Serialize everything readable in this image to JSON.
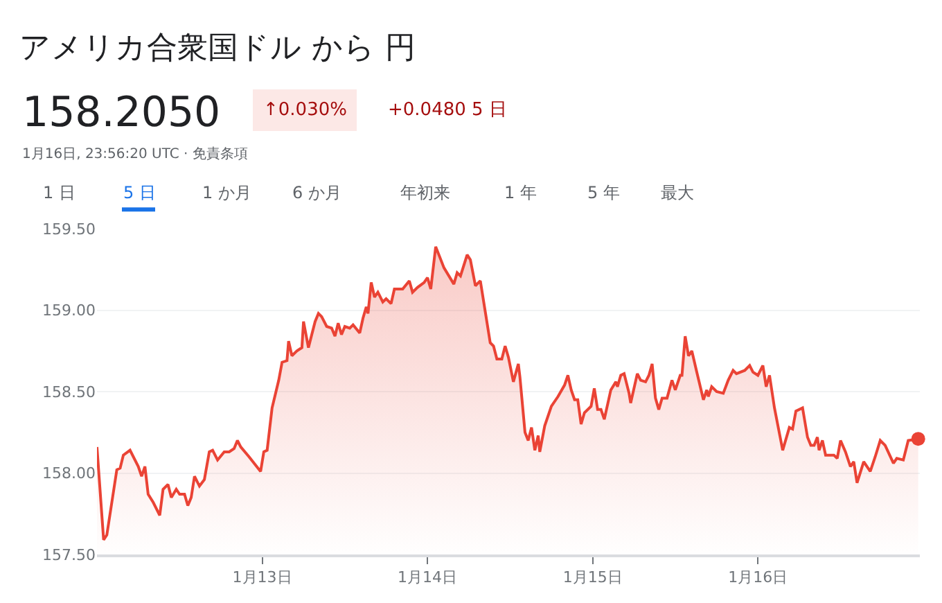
{
  "chart_data": {
    "type": "area",
    "title": "アメリカ合衆国ドル から 円",
    "annotations": [
      "158.2050",
      "↑0.030%",
      "+0.0480 5 日",
      "1月16日, 23:56:20 UTC · 免責条項",
      "1 日",
      "5 日",
      "1 か月",
      "6 か月",
      "年初来",
      "1 年",
      "5 年",
      "最大"
    ],
    "x": [
      "--01-12T00:00",
      "--01-12T00:58",
      "--01-12T01:26",
      "--01-12T02:53",
      "--01-12T03:22",
      "--01-12T03:50",
      "--01-12T04:48",
      "--01-12T06:00",
      "--01-12T06:29",
      "--01-12T06:58",
      "--01-12T07:26",
      "--01-12T08:10",
      "--01-12T09:07",
      "--01-12T09:36",
      "--01-12T10:19",
      "--01-12T10:48",
      "--01-12T11:31",
      "--01-12T12:00",
      "--01-12T12:43",
      "--01-12T13:12",
      "--01-12T13:41",
      "--01-12T14:10",
      "--01-12T14:53",
      "--01-12T15:36",
      "--01-12T16:19",
      "--01-12T16:48",
      "--01-12T17:31",
      "--01-12T18:29",
      "--01-12T19:12",
      "--01-12T19:55",
      "--01-12T20:24",
      "--01-12T20:53",
      "--01-12T22:05",
      "--01-12T23:46",
      "--01-13T00:14",
      "--01-13T00:43",
      "--01-13T01:26",
      "--01-13T02:24",
      "--01-13T02:53",
      "--01-13T03:36",
      "--01-13T03:50",
      "--01-13T04:19",
      "--01-13T05:02",
      "--01-13T05:46",
      "--01-13T06:00",
      "--01-13T06:43",
      "--01-13T07:41",
      "--01-13T08:10",
      "--01-13T08:38",
      "--01-13T09:22",
      "--01-13T10:05",
      "--01-13T10:34",
      "--01-13T11:02",
      "--01-13T11:31",
      "--01-13T12:00",
      "--01-13T12:43",
      "--01-13T13:12",
      "--01-13T14:10",
      "--01-13T14:38",
      "--01-13T15:07",
      "--01-13T15:22",
      "--01-13T15:50",
      "--01-13T16:19",
      "--01-13T16:48",
      "--01-13T17:31",
      "--01-13T18:00",
      "--01-13T18:43",
      "--01-13T19:12",
      "--01-13T20:24",
      "--01-13T21:22",
      "--01-13T21:50",
      "--01-13T22:34",
      "--01-13T23:31",
      "--01-14T00:00",
      "--01-14T00:29",
      "--01-14T01:12",
      "--01-14T02:24",
      "--01-14T03:50",
      "--01-14T04:19",
      "--01-14T04:48",
      "--01-14T05:46",
      "--01-14T06:14",
      "--01-14T06:58",
      "--01-14T07:41",
      "--01-14T08:24",
      "--01-14T09:07",
      "--01-14T09:36",
      "--01-14T10:05",
      "--01-14T10:48",
      "--01-14T11:17",
      "--01-14T11:46",
      "--01-14T12:29",
      "--01-14T13:12",
      "--01-14T13:26",
      "--01-14T14:10",
      "--01-14T14:38",
      "--01-14T15:07",
      "--01-14T15:36",
      "--01-14T16:05",
      "--01-14T16:19",
      "--01-14T17:02",
      "--01-14T18:00",
      "--01-14T18:58",
      "--01-14T19:55",
      "--01-14T20:24",
      "--01-14T20:53",
      "--01-14T21:22",
      "--01-14T21:50",
      "--01-14T22:19",
      "--01-14T22:48",
      "--01-14T23:46",
      "--01-15T00:14",
      "--01-15T00:43",
      "--01-15T01:12",
      "--01-15T01:41",
      "--01-15T02:38",
      "--01-15T03:22",
      "--01-15T03:36",
      "--01-15T04:05",
      "--01-15T04:34",
      "--01-15T05:17",
      "--01-15T05:31",
      "--01-15T06:29",
      "--01-15T06:58",
      "--01-15T07:41",
      "--01-15T08:10",
      "--01-15T08:38",
      "--01-15T09:07",
      "--01-15T09:36",
      "--01-15T10:05",
      "--01-15T10:48",
      "--01-15T11:31",
      "--01-15T12:00",
      "--01-15T12:43",
      "--01-15T12:58",
      "--01-15T13:26",
      "--01-15T13:55",
      "--01-15T14:24",
      "--01-15T15:07",
      "--01-15T16:05",
      "--01-15T16:34",
      "--01-15T16:48",
      "--01-15T17:17",
      "--01-15T18:00",
      "--01-15T18:58",
      "--01-15T19:41",
      "--01-15T20:24",
      "--01-15T20:53",
      "--01-15T22:05",
      "--01-15T22:48",
      "--01-15T23:17",
      "--01-16T00:00",
      "--01-16T00:43",
      "--01-16T01:12",
      "--01-16T01:41",
      "--01-16T02:24",
      "--01-16T03:36",
      "--01-16T04:34",
      "--01-16T05:02",
      "--01-16T05:31",
      "--01-16T06:29",
      "--01-16T07:12",
      "--01-16T07:41",
      "--01-16T08:10",
      "--01-16T08:38",
      "--01-16T08:53",
      "--01-16T09:22",
      "--01-16T09:50",
      "--01-16T11:02",
      "--01-16T11:31",
      "--01-16T12:00",
      "--01-16T12:43",
      "--01-16T13:26",
      "--01-16T13:55",
      "--01-16T14:24",
      "--01-16T15:22",
      "--01-16T16:19",
      "--01-16T17:02",
      "--01-16T17:46",
      "--01-16T18:29",
      "--01-16T19:41",
      "--01-16T20:10",
      "--01-16T21:07",
      "--01-16T21:50",
      "--01-16T23:17"
    ],
    "series": [
      {
        "color": "#ea4335",
        "values": [
          158.16,
          157.59,
          157.62,
          158.02,
          158.03,
          158.11,
          158.14,
          158.04,
          157.98,
          158.04,
          157.87,
          157.82,
          157.74,
          157.9,
          157.93,
          157.85,
          157.9,
          157.87,
          157.87,
          157.8,
          157.85,
          157.98,
          157.92,
          157.96,
          158.13,
          158.14,
          158.08,
          158.13,
          158.13,
          158.15,
          158.2,
          158.16,
          158.1,
          158.01,
          158.13,
          158.14,
          158.4,
          158.57,
          158.68,
          158.69,
          158.81,
          158.72,
          158.75,
          158.77,
          158.93,
          158.77,
          158.93,
          158.98,
          158.96,
          158.9,
          158.89,
          158.84,
          158.92,
          158.85,
          158.9,
          158.89,
          158.91,
          158.86,
          158.95,
          159.02,
          158.98,
          159.17,
          159.08,
          159.11,
          159.05,
          159.07,
          159.04,
          159.13,
          159.13,
          159.18,
          159.11,
          159.14,
          159.17,
          159.2,
          159.13,
          159.39,
          159.26,
          159.16,
          159.23,
          159.21,
          159.34,
          159.31,
          159.15,
          159.18,
          158.99,
          158.8,
          158.78,
          158.7,
          158.7,
          158.78,
          158.71,
          158.56,
          158.67,
          158.59,
          158.25,
          158.2,
          158.28,
          158.14,
          158.23,
          158.13,
          158.29,
          158.41,
          158.47,
          158.54,
          158.6,
          158.51,
          158.45,
          158.45,
          158.3,
          158.37,
          158.41,
          158.52,
          158.39,
          158.39,
          158.33,
          158.51,
          158.56,
          158.53,
          158.6,
          158.61,
          158.49,
          158.43,
          158.61,
          158.57,
          158.56,
          158.6,
          158.67,
          158.46,
          158.39,
          158.46,
          158.46,
          158.57,
          158.51,
          158.6,
          158.6,
          158.84,
          158.72,
          158.75,
          158.62,
          158.45,
          158.51,
          158.47,
          158.53,
          158.5,
          158.49,
          158.57,
          158.63,
          158.61,
          158.63,
          158.66,
          158.62,
          158.6,
          158.66,
          158.53,
          158.6,
          158.4,
          158.14,
          158.28,
          158.27,
          158.38,
          158.4,
          158.22,
          158.17,
          158.17,
          158.22,
          158.14,
          158.2,
          158.11,
          158.11,
          158.09,
          158.2,
          158.13,
          158.04,
          158.07,
          157.94,
          158.07,
          158.01,
          158.1,
          158.2,
          158.17,
          158.06,
          158.09,
          158.08,
          158.2,
          158.21
        ]
      }
    ],
    "xlim": [
      "--01-12T00:00",
      "--01-16T23:31"
    ],
    "ylim": [
      157.5,
      159.5
    ],
    "xticks": [
      {
        "value": "--01-13",
        "label": "1月13日"
      },
      {
        "value": "--01-14",
        "label": "1月14日"
      },
      {
        "value": "--01-15",
        "label": "1月15日"
      },
      {
        "value": "--01-16",
        "label": "1月16日"
      }
    ],
    "yticks": [
      {
        "value": 157.5,
        "label": "157.50"
      },
      {
        "value": 158.0,
        "label": "158.00"
      },
      {
        "value": 158.5,
        "label": "158.50"
      },
      {
        "value": 159.0,
        "label": "159.00"
      },
      {
        "value": 159.5,
        "label": "159.50"
      }
    ],
    "grid": "y",
    "marker": "none",
    "line_style": "solid"
  }
}
